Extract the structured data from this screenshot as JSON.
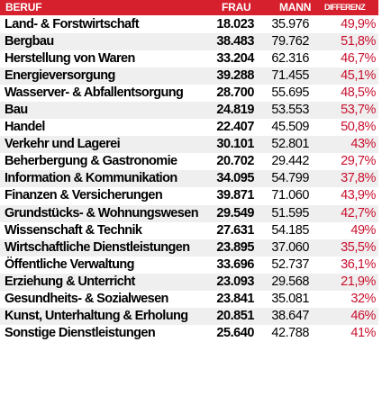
{
  "header": {
    "beruf": "BERUF",
    "frau": "FRAU",
    "mann": "MANN",
    "differenz": "DIFFERENZ"
  },
  "colors": {
    "header_background": "#d6202e",
    "header_text": "#ffffff",
    "difference_text": "#c8102e",
    "alternate_row": "#efefef"
  },
  "rows": [
    {
      "beruf": "Land- & Forstwirtschaft",
      "frau": "18.023",
      "mann": "35.976",
      "differenz": "49,9%"
    },
    {
      "beruf": "Bergbau",
      "frau": "38.483",
      "mann": "79.762",
      "differenz": "51,8%"
    },
    {
      "beruf": "Herstellung von Waren",
      "frau": "33.204",
      "mann": "62.316",
      "differenz": "46,7%"
    },
    {
      "beruf": "Energieversorgung",
      "frau": "39.288",
      "mann": "71.455",
      "differenz": "45,1%"
    },
    {
      "beruf": "Wasserver- & Abfallentsorgung",
      "frau": "28.700",
      "mann": "55.695",
      "differenz": "48,5%"
    },
    {
      "beruf": "Bau",
      "frau": "24.819",
      "mann": "53.553",
      "differenz": "53,7%"
    },
    {
      "beruf": "Handel",
      "frau": "22.407",
      "mann": "45.509",
      "differenz": "50,8%"
    },
    {
      "beruf": "Verkehr und Lagerei",
      "frau": "30.101",
      "mann": "52.801",
      "differenz": "43%"
    },
    {
      "beruf": "Beherbergung & Gastronomie",
      "frau": "20.702",
      "mann": "29.442",
      "differenz": "29,7%"
    },
    {
      "beruf": "Information & Kommunikation",
      "frau": "34.095",
      "mann": "54.799",
      "differenz": "37,8%"
    },
    {
      "beruf": "Finanzen & Versicherungen",
      "frau": "39.871",
      "mann": "71.060",
      "differenz": "43,9%"
    },
    {
      "beruf": "Grundstücks- & Wohnungswesen",
      "frau": "29.549",
      "mann": "51.595",
      "differenz": "42,7%"
    },
    {
      "beruf": "Wissenschaft & Technik",
      "frau": "27.631",
      "mann": "54.185",
      "differenz": "49%"
    },
    {
      "beruf": "Wirtschaftliche Dienstleistungen",
      "frau": "23.895",
      "mann": "37.060",
      "differenz": "35,5%"
    },
    {
      "beruf": "Öffentliche Verwaltung",
      "frau": "33.696",
      "mann": "52.737",
      "differenz": "36,1%"
    },
    {
      "beruf": "Erziehung & Unterricht",
      "frau": "23.093",
      "mann": "29.568",
      "differenz": "21,9%"
    },
    {
      "beruf": "Gesundheits- & Sozialwesen",
      "frau": "23.841",
      "mann": "35.081",
      "differenz": "32%"
    },
    {
      "beruf": "Kunst, Unterhaltung & Erholung",
      "frau": "20.851",
      "mann": "38.647",
      "differenz": "46%"
    },
    {
      "beruf": "Sonstige Dienstleistungen",
      "frau": "25.640",
      "mann": "42.788",
      "differenz": "41%"
    }
  ]
}
